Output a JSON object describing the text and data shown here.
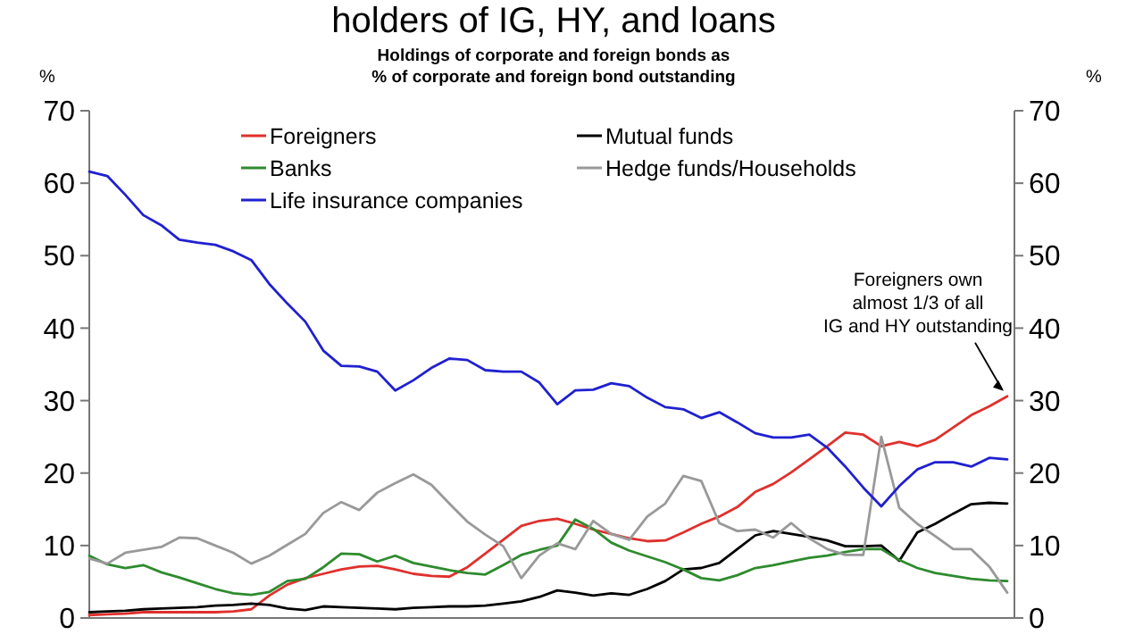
{
  "chart_data": {
    "type": "line",
    "title": "holders of IG, HY, and loans",
    "subtitle": "Holdings of corporate and foreign bonds as\n% of corporate and foreign bond outstanding",
    "ylabel": "%",
    "y2label": "%",
    "categories": [
      null,
      null,
      null,
      null,
      null,
      null,
      null,
      null,
      null,
      null,
      null,
      null,
      null,
      null,
      null,
      null,
      null,
      null,
      null,
      null,
      null,
      null,
      null,
      null,
      null,
      null,
      null,
      null,
      null,
      null,
      null,
      null,
      null,
      null,
      null,
      null,
      null,
      null,
      null,
      null,
      null,
      null,
      null,
      null,
      null,
      null,
      null,
      null,
      null,
      null,
      null,
      null
    ],
    "ylim": [
      0,
      70
    ],
    "yticks": [
      0,
      10,
      20,
      30,
      40,
      50,
      60,
      70
    ],
    "y2lim": [
      0,
      70
    ],
    "y2ticks": [
      0,
      10,
      20,
      30,
      40,
      50,
      60,
      70
    ],
    "grid": false,
    "legend": "top",
    "marker": "none",
    "line_style": "solid",
    "annotations": [
      "Foreigners own\nalmost 1/3 of all\nIG and HY outstanding"
    ],
    "series": [
      {
        "name": "Foreigners",
        "color": "#e0302c",
        "values": [
          0.4,
          0.5,
          0.6,
          0.8,
          0.8,
          0.8,
          0.8,
          0.8,
          0.9,
          1.2,
          3.1,
          4.6,
          5.5,
          6.1,
          6.7,
          7.1,
          7.2,
          6.7,
          6.1,
          5.8,
          5.7,
          7.0,
          8.9,
          10.8,
          12.7,
          13.4,
          13.7,
          13.0,
          12.2,
          11.6,
          11.0,
          10.6,
          10.7,
          11.8,
          13.0,
          14.0,
          15.3,
          17.4,
          18.5,
          20.1,
          21.9,
          23.7,
          25.6,
          25.3,
          23.7,
          24.3,
          23.7,
          24.6,
          26.3,
          28.0,
          29.2,
          30.6
        ]
      },
      {
        "name": "Mutual funds",
        "color": "#000000",
        "values": [
          0.8,
          0.9,
          1.0,
          1.2,
          1.3,
          1.4,
          1.5,
          1.7,
          1.8,
          2.0,
          1.8,
          1.3,
          1.1,
          1.6,
          1.5,
          1.4,
          1.3,
          1.2,
          1.4,
          1.5,
          1.6,
          1.6,
          1.7,
          2.0,
          2.3,
          2.9,
          3.8,
          3.5,
          3.1,
          3.4,
          3.2,
          4.0,
          5.1,
          6.7,
          6.9,
          7.6,
          9.5,
          11.4,
          12.0,
          11.6,
          11.2,
          10.7,
          9.9,
          9.9,
          10.0,
          7.9,
          11.8,
          13.0,
          14.4,
          15.7,
          15.9,
          15.8
        ]
      },
      {
        "name": "Banks",
        "color": "#2e8b2e",
        "values": [
          8.6,
          7.4,
          6.9,
          7.3,
          6.3,
          5.6,
          4.8,
          4.0,
          3.4,
          3.2,
          3.6,
          5.1,
          5.4,
          7.0,
          8.9,
          8.8,
          7.8,
          8.6,
          7.6,
          7.1,
          6.6,
          6.2,
          6.0,
          7.3,
          8.7,
          9.4,
          10.0,
          13.6,
          12.3,
          10.4,
          9.3,
          8.5,
          7.7,
          6.7,
          5.5,
          5.2,
          5.9,
          6.9,
          7.3,
          7.8,
          8.3,
          8.6,
          9.1,
          9.5,
          9.5,
          8.0,
          6.9,
          6.2,
          5.8,
          5.4,
          5.2,
          5.1
        ]
      },
      {
        "name": "Hedge funds/Households",
        "color": "#999999",
        "values": [
          8.2,
          7.5,
          9,
          9.4,
          9.8,
          11.1,
          11.0,
          10.0,
          9.0,
          7.5,
          8.6,
          10.1,
          11.6,
          14.5,
          16.0,
          14.9,
          17.3,
          18.6,
          19.8,
          18.4,
          15.8,
          13.3,
          11.5,
          9.9,
          5.5,
          8.6,
          10.3,
          9.5,
          13.4,
          11.6,
          10.8,
          14.0,
          15.8,
          19.6,
          18.9,
          13.1,
          12.0,
          12.2,
          11.1,
          13.1,
          11.0,
          9.5,
          8.7,
          8.7,
          25.0,
          15.2,
          13.0,
          11.3,
          9.5,
          9.5,
          7.1,
          3.5
        ]
      },
      {
        "name": "Life insurance companies",
        "color": "#2020d0",
        "values": [
          61.6,
          61,
          58.4,
          55.6,
          54.2,
          52.2,
          51.8,
          51.5,
          50.6,
          49.4,
          46.1,
          43.4,
          40.9,
          36.9,
          34.8,
          34.7,
          34.0,
          31.4,
          32.8,
          34.5,
          35.8,
          35.6,
          34.2,
          34.0,
          34.0,
          32.5,
          29.5,
          31.4,
          31.5,
          32.4,
          32.0,
          30.4,
          29.1,
          28.8,
          27.6,
          28.4,
          27.0,
          25.5,
          24.9,
          24.9,
          25.3,
          23.5,
          20.9,
          18.0,
          15.4,
          18.2,
          20.5,
          21.5,
          21.5,
          20.9,
          22.1,
          21.9
        ]
      }
    ]
  }
}
